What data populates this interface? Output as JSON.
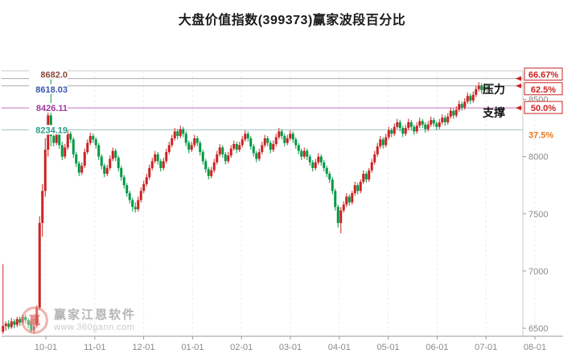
{
  "chart_data": {
    "type": "candlestick",
    "title": "大盘价值指数(399373)赢家波段百分比",
    "up_color": "#cc2222",
    "down_color": "#009944",
    "ylim": [
      6430,
      8750
    ],
    "y_ticks": [
      "8500",
      "8000",
      "7500",
      "7000",
      "6500"
    ],
    "y_tick_values": [
      8500,
      8000,
      7500,
      7000,
      6500
    ],
    "x_tick_labels": [
      "10-01",
      "11-01",
      "12-01",
      "01-01",
      "02-01",
      "03-01",
      "04-01",
      "05-01",
      "06-01",
      "07-01",
      "08-01"
    ],
    "grid": "vertical-dashed",
    "legend": "none",
    "annotations": {
      "pressure": "压力",
      "support": "支撑"
    },
    "levels": [
      {
        "price_label": "8682.0",
        "value": 8682.0,
        "pct_label": "66.67%",
        "boxed": true,
        "label_color": "#8a4a3a",
        "line_color": "#aaaaaa",
        "label_dy": -5,
        "pct_dy": -5
      },
      {
        "price_label": "8618.03",
        "value": 8618.03,
        "pct_label": "62.5%",
        "boxed": true,
        "label_color": "#3a55b0",
        "line_color": "#aaaaaa",
        "label_dy": 4,
        "pct_dy": 4
      },
      {
        "price_label": "8426.11",
        "value": 8426.11,
        "pct_label": "50.0%",
        "boxed": true,
        "label_color": "#a03aa0",
        "line_color": "#c070c0",
        "label_dy": 0,
        "pct_dy": 0
      },
      {
        "price_label": "8234.19",
        "value": 8234.19,
        "pct_label": "37.5%",
        "boxed": false,
        "label_color": "#2a9a8a",
        "line_color": "#9fc6c0",
        "label_dy": 0,
        "pct_dy": 6
      }
    ],
    "box_color": "#cc2222",
    "plain_pct_color": "#e87a22",
    "candles": [
      [
        6470,
        7060,
        6450,
        6520
      ],
      [
        6520,
        6560,
        6480,
        6540
      ],
      [
        6540,
        6570,
        6490,
        6510
      ],
      [
        6510,
        6590,
        6495,
        6560
      ],
      [
        6560,
        6580,
        6500,
        6530
      ],
      [
        6530,
        6600,
        6510,
        6580
      ],
      [
        6580,
        6600,
        6520,
        6550
      ],
      [
        6550,
        6620,
        6530,
        6600
      ],
      [
        6600,
        6620,
        6540,
        6570
      ],
      [
        6570,
        6590,
        6500,
        6530
      ],
      [
        6530,
        6560,
        6460,
        6480
      ],
      [
        6480,
        6540,
        6450,
        6520
      ],
      [
        6520,
        6700,
        6500,
        6680
      ],
      [
        6680,
        7480,
        6660,
        7420
      ],
      [
        7420,
        7760,
        7300,
        7700
      ],
      [
        7700,
        8160,
        7650,
        8060
      ],
      [
        8060,
        8470,
        8000,
        8360
      ],
      [
        8360,
        8682,
        8090,
        8180
      ],
      [
        8180,
        8210,
        8090,
        8120
      ],
      [
        8120,
        8250,
        8100,
        8220
      ],
      [
        8220,
        8240,
        8070,
        8100
      ],
      [
        8100,
        8130,
        7970,
        8000
      ],
      [
        8000,
        8110,
        7980,
        8080
      ],
      [
        8080,
        8230,
        8060,
        8200
      ],
      [
        8200,
        8220,
        8120,
        8150
      ],
      [
        8150,
        8170,
        7990,
        8020
      ],
      [
        8020,
        8040,
        7910,
        7940
      ],
      [
        7940,
        7960,
        7830,
        7860
      ],
      [
        7860,
        7950,
        7840,
        7920
      ],
      [
        7920,
        8070,
        7900,
        8040
      ],
      [
        8040,
        8150,
        8020,
        8120
      ],
      [
        8120,
        8210,
        8100,
        8180
      ],
      [
        8180,
        8200,
        8120,
        8150
      ],
      [
        8150,
        8170,
        8070,
        8100
      ],
      [
        8100,
        8120,
        7970,
        8000
      ],
      [
        8000,
        8020,
        7890,
        7920
      ],
      [
        7920,
        7940,
        7820,
        7850
      ],
      [
        7850,
        7930,
        7830,
        7900
      ],
      [
        7900,
        8010,
        7880,
        7980
      ],
      [
        7980,
        8080,
        7960,
        8050
      ],
      [
        8050,
        8070,
        7960,
        7990
      ],
      [
        7990,
        8010,
        7870,
        7900
      ],
      [
        7900,
        7920,
        7790,
        7820
      ],
      [
        7820,
        7840,
        7720,
        7750
      ],
      [
        7750,
        7770,
        7650,
        7680
      ],
      [
        7680,
        7700,
        7590,
        7620
      ],
      [
        7620,
        7640,
        7520,
        7560
      ],
      [
        7560,
        7600,
        7510,
        7540
      ],
      [
        7540,
        7650,
        7520,
        7620
      ],
      [
        7620,
        7730,
        7600,
        7700
      ],
      [
        7700,
        7790,
        7680,
        7760
      ],
      [
        7760,
        7850,
        7740,
        7820
      ],
      [
        7820,
        7930,
        7800,
        7900
      ],
      [
        7900,
        7990,
        7880,
        7960
      ],
      [
        7960,
        8050,
        7940,
        8020
      ],
      [
        8020,
        8040,
        7930,
        7960
      ],
      [
        7960,
        7980,
        7870,
        7900
      ],
      [
        7900,
        7990,
        7880,
        7960
      ],
      [
        7960,
        8070,
        7940,
        8040
      ],
      [
        8040,
        8130,
        8020,
        8100
      ],
      [
        8100,
        8190,
        8080,
        8160
      ],
      [
        8160,
        8250,
        8140,
        8220
      ],
      [
        8220,
        8240,
        8150,
        8180
      ],
      [
        8180,
        8270,
        8160,
        8240
      ],
      [
        8240,
        8260,
        8170,
        8200
      ],
      [
        8200,
        8220,
        8090,
        8120
      ],
      [
        8120,
        8140,
        8030,
        8060
      ],
      [
        8060,
        8130,
        8040,
        8100
      ],
      [
        8100,
        8190,
        8080,
        8160
      ],
      [
        8160,
        8180,
        8090,
        8120
      ],
      [
        8120,
        8140,
        8010,
        8040
      ],
      [
        8040,
        8060,
        7930,
        7960
      ],
      [
        7960,
        7980,
        7860,
        7890
      ],
      [
        7890,
        7910,
        7800,
        7830
      ],
      [
        7830,
        7910,
        7810,
        7880
      ],
      [
        7880,
        7980,
        7860,
        7950
      ],
      [
        7950,
        8050,
        7930,
        8020
      ],
      [
        8020,
        8110,
        8000,
        8080
      ],
      [
        8080,
        8100,
        7990,
        8020
      ],
      [
        8020,
        8040,
        7930,
        7960
      ],
      [
        7960,
        8040,
        7940,
        8010
      ],
      [
        8010,
        8100,
        7990,
        8070
      ],
      [
        8070,
        8140,
        8050,
        8110
      ],
      [
        8110,
        8130,
        8030,
        8060
      ],
      [
        8060,
        8130,
        8040,
        8100
      ],
      [
        8100,
        8180,
        8080,
        8150
      ],
      [
        8150,
        8230,
        8130,
        8200
      ],
      [
        8200,
        8220,
        8130,
        8160
      ],
      [
        8160,
        8180,
        8060,
        8090
      ],
      [
        8090,
        8110,
        8000,
        8030
      ],
      [
        8030,
        8050,
        7950,
        7980
      ],
      [
        7980,
        8070,
        7960,
        8040
      ],
      [
        8040,
        8130,
        8020,
        8100
      ],
      [
        8100,
        8190,
        8080,
        8160
      ],
      [
        8160,
        8180,
        8090,
        8120
      ],
      [
        8120,
        8140,
        8030,
        8060
      ],
      [
        8060,
        8140,
        8040,
        8110
      ],
      [
        8110,
        8200,
        8090,
        8170
      ],
      [
        8170,
        8250,
        8150,
        8220
      ],
      [
        8220,
        8240,
        8150,
        8180
      ],
      [
        8180,
        8200,
        8090,
        8120
      ],
      [
        8120,
        8190,
        8100,
        8160
      ],
      [
        8160,
        8230,
        8140,
        8200
      ],
      [
        8200,
        8220,
        8120,
        8150
      ],
      [
        8150,
        8170,
        8070,
        8100
      ],
      [
        8100,
        8120,
        8020,
        8050
      ],
      [
        8050,
        8070,
        7970,
        8000
      ],
      [
        8000,
        8080,
        7980,
        8050
      ],
      [
        8050,
        8070,
        7970,
        8000
      ],
      [
        8000,
        8020,
        7920,
        7950
      ],
      [
        7950,
        7970,
        7870,
        7900
      ],
      [
        7900,
        7980,
        7880,
        7950
      ],
      [
        7950,
        8030,
        7930,
        8000
      ],
      [
        8000,
        8020,
        7920,
        7950
      ],
      [
        7950,
        7970,
        7870,
        7900
      ],
      [
        7900,
        7920,
        7820,
        7850
      ],
      [
        7850,
        7870,
        7770,
        7800
      ],
      [
        7800,
        7820,
        7670,
        7700
      ],
      [
        7700,
        7720,
        7530,
        7560
      ],
      [
        7560,
        7580,
        7380,
        7420
      ],
      [
        7420,
        7560,
        7330,
        7530
      ],
      [
        7530,
        7610,
        7510,
        7580
      ],
      [
        7580,
        7680,
        7560,
        7650
      ],
      [
        7650,
        7670,
        7570,
        7600
      ],
      [
        7600,
        7700,
        7580,
        7680
      ],
      [
        7680,
        7780,
        7660,
        7750
      ],
      [
        7750,
        7770,
        7670,
        7700
      ],
      [
        7700,
        7800,
        7680,
        7780
      ],
      [
        7780,
        7880,
        7760,
        7850
      ],
      [
        7850,
        7870,
        7770,
        7800
      ],
      [
        7800,
        7900,
        7780,
        7880
      ],
      [
        7880,
        7980,
        7860,
        7950
      ],
      [
        7950,
        8050,
        7930,
        8020
      ],
      [
        8020,
        8120,
        8000,
        8090
      ],
      [
        8090,
        8180,
        8070,
        8150
      ],
      [
        8150,
        8170,
        8070,
        8100
      ],
      [
        8100,
        8200,
        8080,
        8170
      ],
      [
        8170,
        8260,
        8150,
        8230
      ],
      [
        8230,
        8250,
        8170,
        8200
      ],
      [
        8200,
        8290,
        8180,
        8260
      ],
      [
        8260,
        8330,
        8240,
        8300
      ],
      [
        8300,
        8320,
        8220,
        8250
      ],
      [
        8250,
        8270,
        8170,
        8200
      ],
      [
        8200,
        8280,
        8180,
        8250
      ],
      [
        8250,
        8330,
        8230,
        8300
      ],
      [
        8300,
        8320,
        8230,
        8260
      ],
      [
        8260,
        8280,
        8190,
        8220
      ],
      [
        8220,
        8300,
        8200,
        8270
      ],
      [
        8270,
        8340,
        8250,
        8310
      ],
      [
        8310,
        8330,
        8250,
        8280
      ],
      [
        8280,
        8300,
        8210,
        8240
      ],
      [
        8240,
        8310,
        8220,
        8280
      ],
      [
        8280,
        8350,
        8260,
        8320
      ],
      [
        8320,
        8340,
        8260,
        8290
      ],
      [
        8290,
        8310,
        8230,
        8260
      ],
      [
        8260,
        8330,
        8240,
        8300
      ],
      [
        8300,
        8370,
        8280,
        8340
      ],
      [
        8340,
        8360,
        8270,
        8300
      ],
      [
        8300,
        8380,
        8280,
        8350
      ],
      [
        8350,
        8430,
        8330,
        8400
      ],
      [
        8400,
        8420,
        8330,
        8360
      ],
      [
        8360,
        8440,
        8340,
        8410
      ],
      [
        8410,
        8490,
        8390,
        8460
      ],
      [
        8460,
        8480,
        8400,
        8430
      ],
      [
        8430,
        8510,
        8410,
        8480
      ],
      [
        8480,
        8560,
        8460,
        8530
      ],
      [
        8530,
        8550,
        8460,
        8490
      ],
      [
        8490,
        8570,
        8470,
        8540
      ],
      [
        8540,
        8620,
        8520,
        8590
      ],
      [
        8590,
        8650,
        8570,
        8620
      ],
      [
        8620,
        8640,
        8550,
        8580
      ],
      [
        8580,
        8640,
        8560,
        8610
      ],
      [
        8610,
        8630,
        8560,
        8600
      ]
    ]
  },
  "watermark": {
    "brand": "赢家江恩软件",
    "url": "www.360gann.com",
    "logo_char": "赢"
  }
}
